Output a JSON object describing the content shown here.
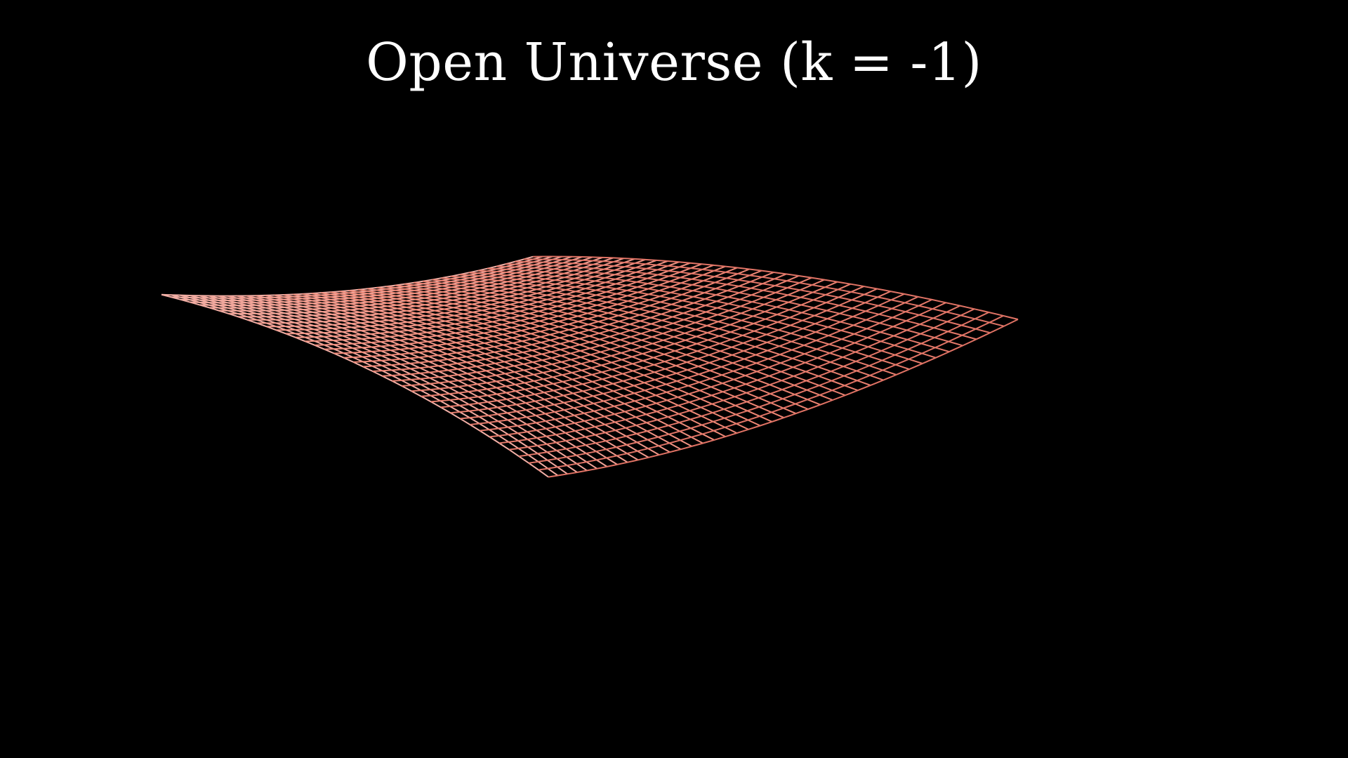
{
  "title": "Open Universe (k = -1)",
  "surface": {
    "name": "hyperbolic-saddle-surface",
    "grid_lines_per_direction": 41,
    "colors": {
      "background": "#000000",
      "title": "#ffffff",
      "mesh_near": "#f3c3bf",
      "mesh_mid": "#f08a78",
      "mesh_far": "#cf5a50"
    }
  }
}
